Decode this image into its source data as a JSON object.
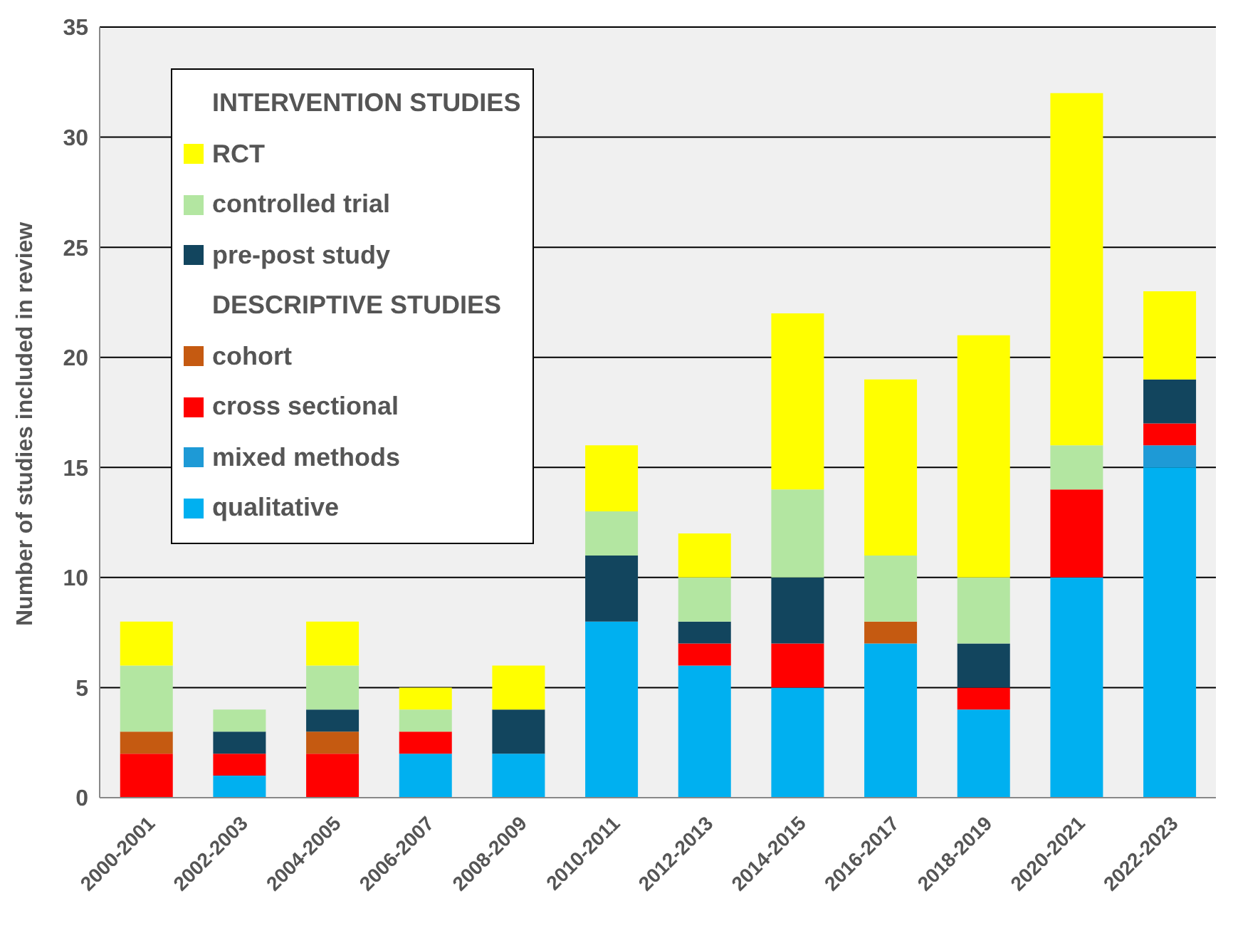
{
  "chart_data": {
    "type": "bar",
    "stacked": true,
    "ylabel": "Number of studies included in review",
    "categories": [
      "2000-2001",
      "2002-2003",
      "2004-2005",
      "2006-2007",
      "2008-2009",
      "2010-2011",
      "2012-2013",
      "2014-2015",
      "2016-2017",
      "2018-2019",
      "2020-2021",
      "2022-2023"
    ],
    "series": [
      {
        "name": "qualitative",
        "color": "#00b0f0",
        "values": [
          0,
          1,
          0,
          2,
          2,
          8,
          6,
          5,
          7,
          4,
          10,
          15
        ]
      },
      {
        "name": "mixed methods",
        "color": "#1e9ad6",
        "values": [
          0,
          0,
          0,
          0,
          0,
          0,
          0,
          0,
          0,
          0,
          0,
          1
        ]
      },
      {
        "name": "cross sectional",
        "color": "#ff0000",
        "values": [
          2,
          1,
          2,
          1,
          0,
          0,
          1,
          2,
          0,
          1,
          4,
          1
        ]
      },
      {
        "name": "cohort",
        "color": "#c55a11",
        "values": [
          1,
          0,
          1,
          0,
          0,
          0,
          0,
          0,
          1,
          0,
          0,
          0
        ]
      },
      {
        "name": "pre-post study",
        "color": "#12455e",
        "values": [
          0,
          1,
          1,
          0,
          2,
          3,
          1,
          3,
          0,
          2,
          0,
          2
        ]
      },
      {
        "name": "controlled trial",
        "color": "#b3e6a1",
        "values": [
          3,
          1,
          2,
          1,
          0,
          2,
          2,
          4,
          3,
          3,
          2,
          0
        ]
      },
      {
        "name": "RCT",
        "color": "#ffff00",
        "values": [
          2,
          0,
          2,
          1,
          2,
          3,
          2,
          8,
          8,
          11,
          16,
          4
        ]
      }
    ],
    "annotations": [
      "INTERVENTION STUDIES",
      "DESCRIPTIVE STUDIES"
    ],
    "ylim": [
      0,
      35
    ],
    "yticks": [
      0,
      5,
      10,
      15,
      20,
      25,
      30,
      35
    ],
    "grid": "y",
    "legend": "top left"
  }
}
